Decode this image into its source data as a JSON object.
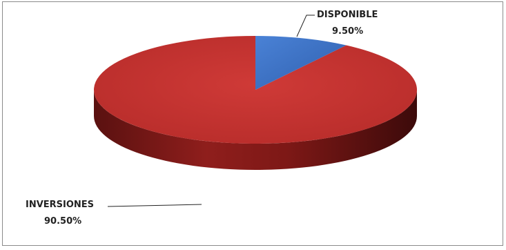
{
  "chart_data": {
    "type": "pie",
    "style": "3d",
    "title": "",
    "categories": [
      "DISPONIBLE",
      "INVERSIONES"
    ],
    "values": [
      9.5,
      90.5
    ],
    "value_labels": [
      "9.50%",
      "90.50%"
    ],
    "colors": [
      "#3a6fc4",
      "#c0302e"
    ],
    "legend": "none"
  }
}
